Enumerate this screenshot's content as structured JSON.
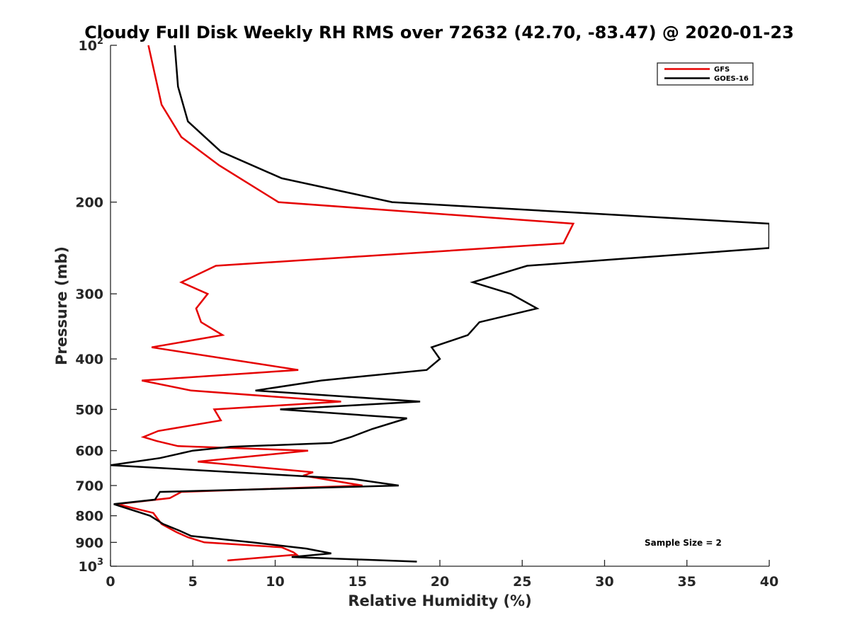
{
  "chart_data": {
    "type": "line",
    "title": "Cloudy Full Disk Weekly RH RMS over 72632 (42.70, -83.47) @ 2020-01-23",
    "xlabel": "Relative Humidity (%)",
    "ylabel": "Pressure (mb)",
    "xlim": [
      0,
      40
    ],
    "ylim": [
      100,
      1000
    ],
    "y_scale": "log",
    "y_reversed": true,
    "x_ticks": [
      0,
      5,
      10,
      15,
      20,
      25,
      30,
      35,
      40
    ],
    "x_tick_labels": [
      "0",
      "5",
      "10",
      "15",
      "20",
      "25",
      "30",
      "35",
      "40"
    ],
    "y_ticks": [
      {
        "value": 100,
        "base": "10",
        "exp": "2"
      },
      {
        "value": 200,
        "base": "200",
        "exp": ""
      },
      {
        "value": 300,
        "base": "300",
        "exp": ""
      },
      {
        "value": 400,
        "base": "400",
        "exp": ""
      },
      {
        "value": 500,
        "base": "500",
        "exp": ""
      },
      {
        "value": 600,
        "base": "600",
        "exp": ""
      },
      {
        "value": 700,
        "base": "700",
        "exp": ""
      },
      {
        "value": 800,
        "base": "800",
        "exp": ""
      },
      {
        "value": 900,
        "base": "900",
        "exp": ""
      },
      {
        "value": 1000,
        "base": "10",
        "exp": "3"
      }
    ],
    "grid": false,
    "legend_position": "top-right",
    "series": [
      {
        "name": "GFS",
        "color": "#e50000",
        "points": [
          [
            2.3,
            100
          ],
          [
            3.1,
            130
          ],
          [
            4.3,
            150
          ],
          [
            6.6,
            170
          ],
          [
            10.2,
            200
          ],
          [
            28.1,
            220
          ],
          [
            27.5,
            240
          ],
          [
            6.4,
            265
          ],
          [
            4.3,
            285
          ],
          [
            5.9,
            300
          ],
          [
            5.2,
            320
          ],
          [
            5.5,
            340
          ],
          [
            6.8,
            360
          ],
          [
            2.5,
            380
          ],
          [
            11.4,
            420
          ],
          [
            1.9,
            440
          ],
          [
            4.9,
            460
          ],
          [
            14.0,
            483
          ],
          [
            6.3,
            500
          ],
          [
            6.7,
            525
          ],
          [
            2.9,
            550
          ],
          [
            2.0,
            565
          ],
          [
            2.8,
            575
          ],
          [
            4.1,
            588
          ],
          [
            12.0,
            600
          ],
          [
            5.3,
            630
          ],
          [
            12.3,
            660
          ],
          [
            11.7,
            670
          ],
          [
            15.3,
            700
          ],
          [
            4.3,
            720
          ],
          [
            3.6,
            740
          ],
          [
            0.4,
            760
          ],
          [
            2.6,
            790
          ],
          [
            3.1,
            830
          ],
          [
            4.0,
            860
          ],
          [
            4.7,
            880
          ],
          [
            5.7,
            900
          ],
          [
            10.4,
            920
          ],
          [
            11.1,
            940
          ],
          [
            11.3,
            950
          ],
          [
            7.1,
            975
          ]
        ]
      },
      {
        "name": "GOES-16",
        "color": "#000000",
        "points": [
          [
            3.9,
            100
          ],
          [
            4.1,
            120
          ],
          [
            4.7,
            140
          ],
          [
            6.7,
            160
          ],
          [
            10.4,
            180
          ],
          [
            17.1,
            200
          ],
          [
            40.0,
            220
          ],
          [
            40.0,
            245
          ],
          [
            25.3,
            265
          ],
          [
            22.0,
            285
          ],
          [
            24.3,
            300
          ],
          [
            25.9,
            320
          ],
          [
            22.4,
            340
          ],
          [
            21.7,
            360
          ],
          [
            19.5,
            380
          ],
          [
            20.0,
            400
          ],
          [
            19.2,
            420
          ],
          [
            12.8,
            440
          ],
          [
            8.8,
            460
          ],
          [
            18.8,
            483
          ],
          [
            10.3,
            500
          ],
          [
            18.0,
            520
          ],
          [
            15.9,
            545
          ],
          [
            14.6,
            565
          ],
          [
            13.4,
            580
          ],
          [
            7.3,
            590
          ],
          [
            5.0,
            600
          ],
          [
            3.0,
            620
          ],
          [
            0.0,
            640
          ],
          [
            14.7,
            680
          ],
          [
            17.5,
            700
          ],
          [
            3.0,
            720
          ],
          [
            2.7,
            745
          ],
          [
            0.2,
            760
          ],
          [
            2.4,
            800
          ],
          [
            3.2,
            830
          ],
          [
            4.2,
            855
          ],
          [
            4.9,
            875
          ],
          [
            8.6,
            900
          ],
          [
            11.9,
            925
          ],
          [
            13.4,
            945
          ],
          [
            11.0,
            960
          ],
          [
            18.6,
            980
          ]
        ]
      }
    ],
    "annotations": [
      "Sample Size = 2"
    ]
  }
}
